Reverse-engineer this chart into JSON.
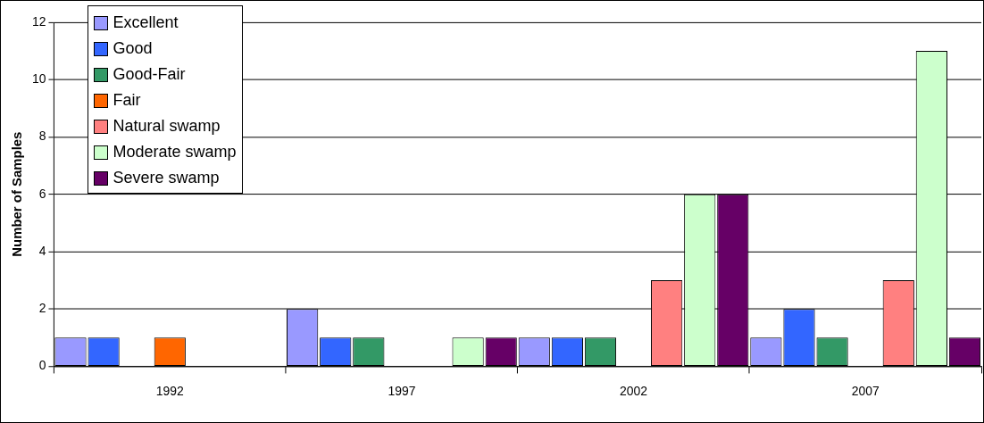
{
  "chart_data": {
    "type": "bar",
    "ylabel": "Number of Samples",
    "categories": [
      "1992",
      "1997",
      "2002",
      "2007"
    ],
    "series": [
      {
        "name": "Excellent",
        "color": "#9999ff",
        "values": [
          1,
          2,
          1,
          1
        ]
      },
      {
        "name": "Good",
        "color": "#3366ff",
        "values": [
          1,
          1,
          1,
          2
        ]
      },
      {
        "name": "Good-Fair",
        "color": "#339966",
        "values": [
          0,
          1,
          1,
          1
        ]
      },
      {
        "name": "Fair",
        "color": "#ff6600",
        "values": [
          1,
          0,
          0,
          0
        ]
      },
      {
        "name": "Natural swamp",
        "color": "#ff8080",
        "values": [
          0,
          0,
          3,
          3
        ]
      },
      {
        "name": "Moderate swamp",
        "color": "#ccffcc",
        "values": [
          0,
          1,
          6,
          11
        ]
      },
      {
        "name": "Severe swamp",
        "color": "#660066",
        "values": [
          0,
          1,
          6,
          1
        ]
      }
    ],
    "ylim": [
      0,
      12
    ],
    "yticks": [
      0,
      2,
      4,
      6,
      8,
      10,
      12
    ],
    "grid": "y",
    "legend": "top left"
  }
}
